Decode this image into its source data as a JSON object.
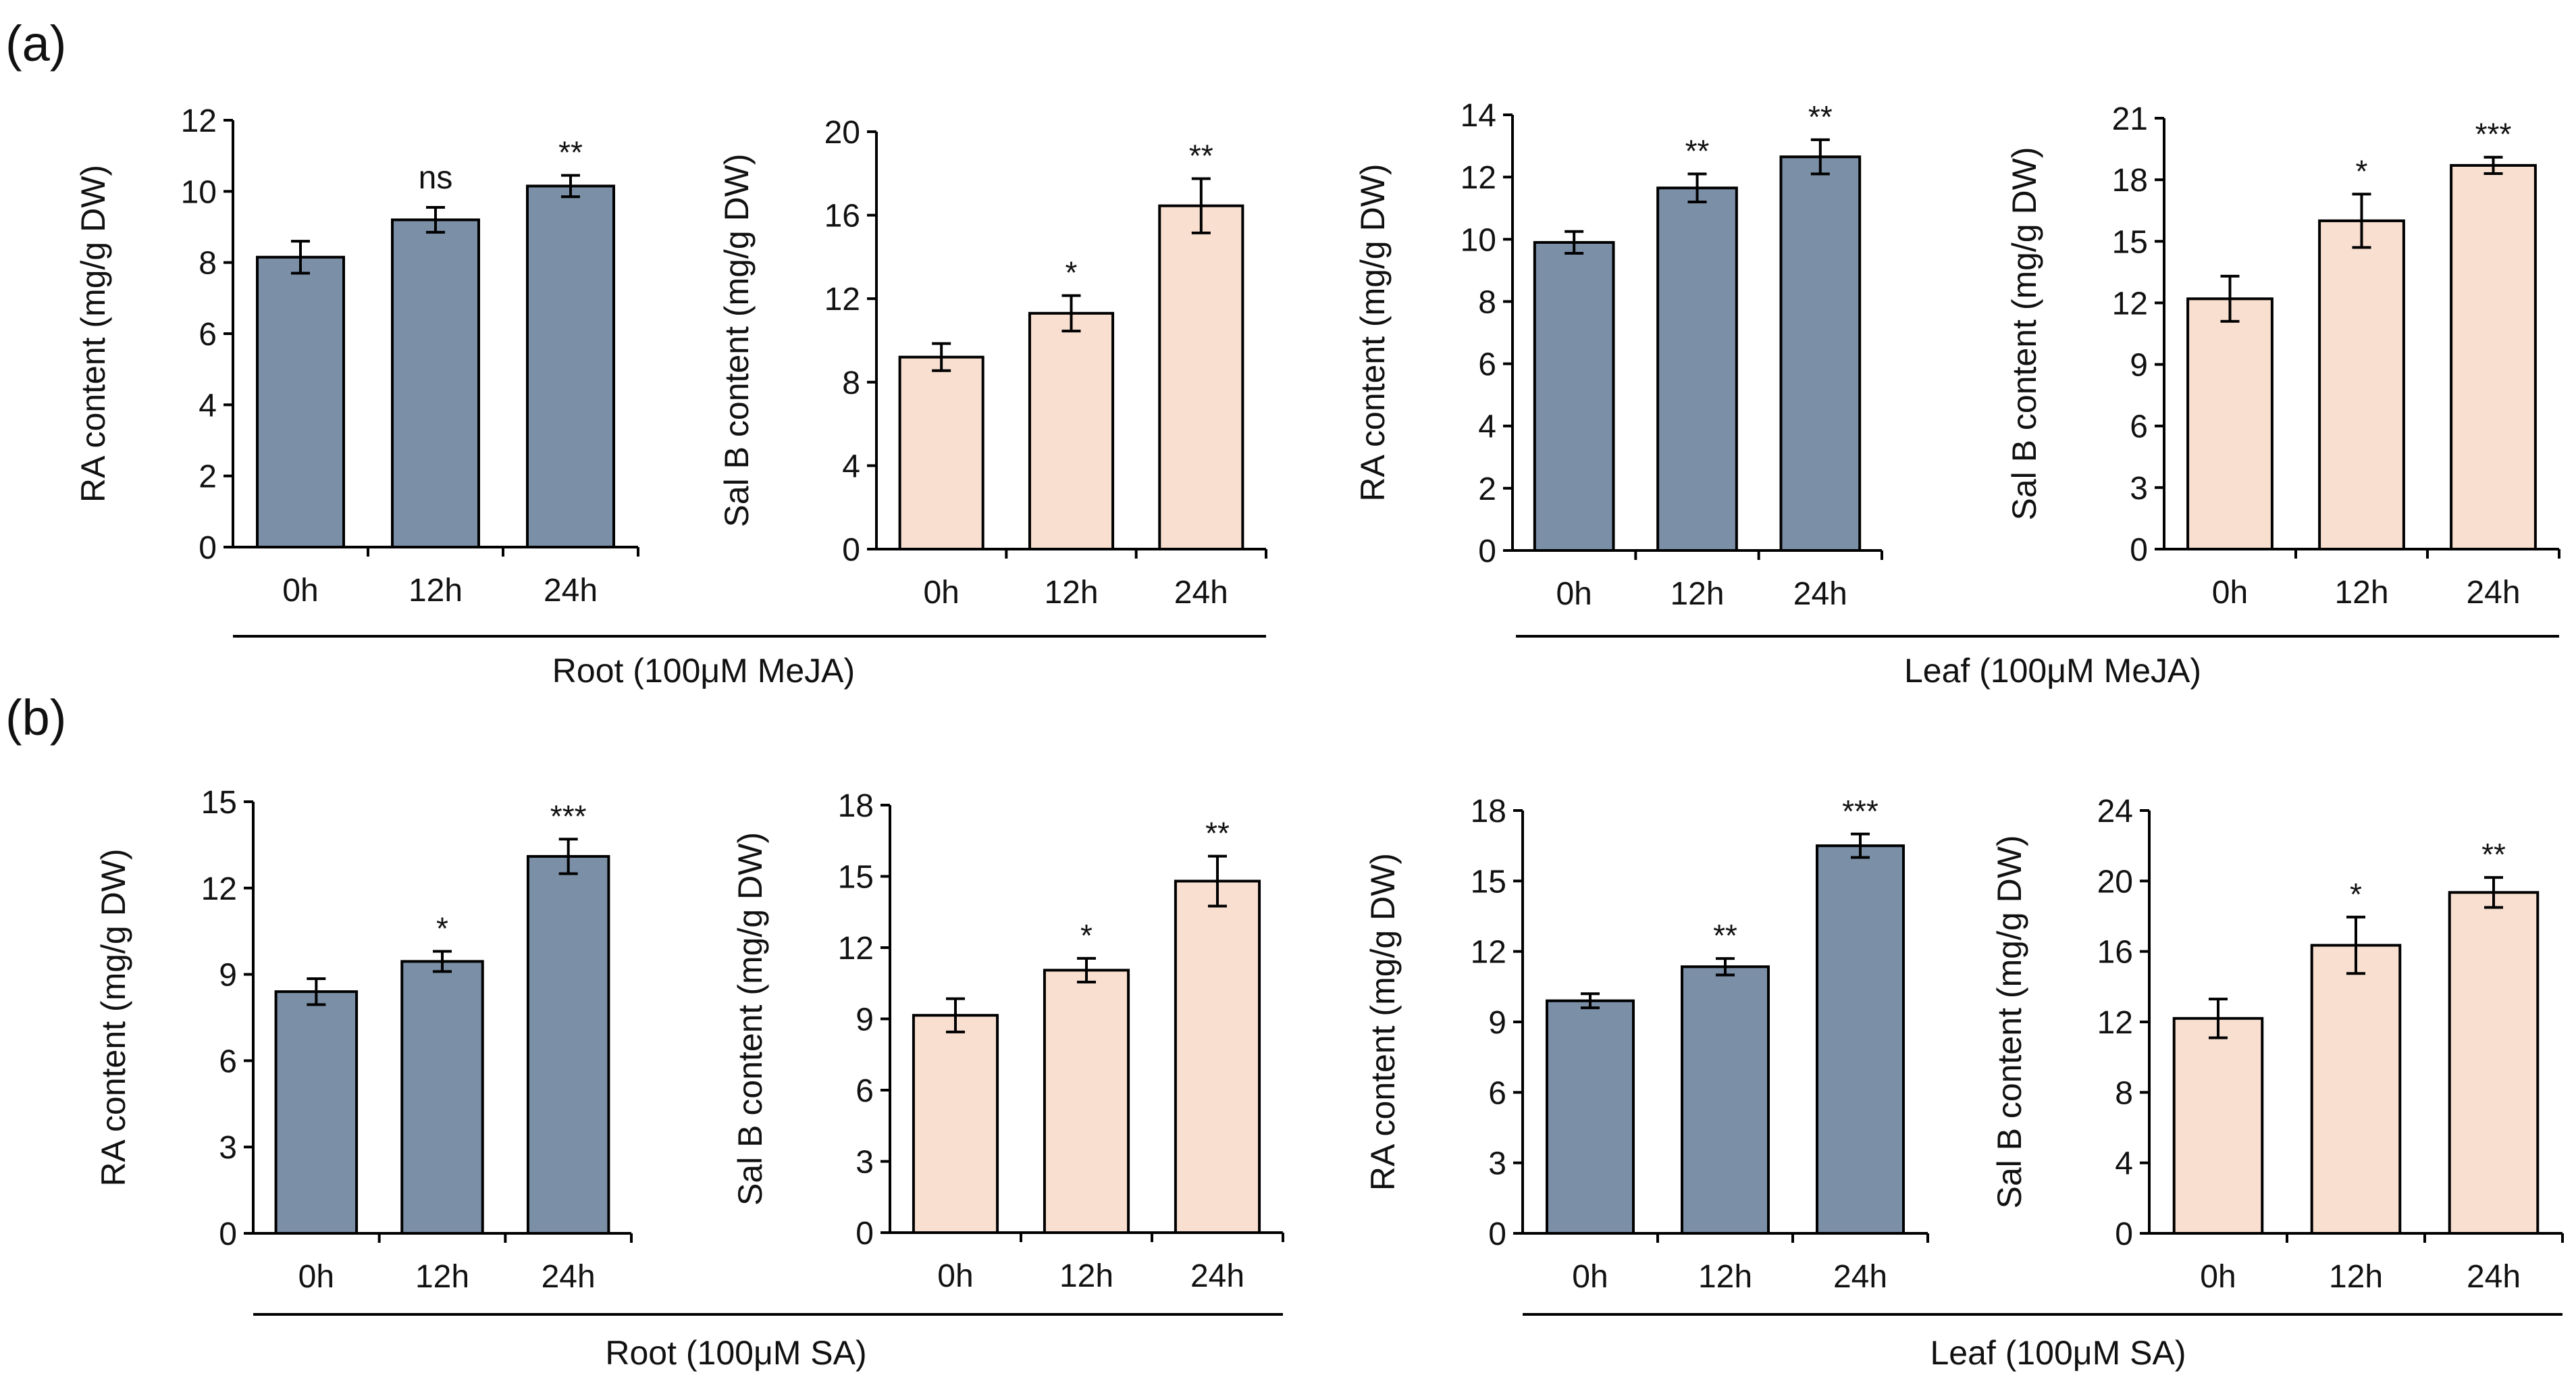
{
  "panel_labels": {
    "a": "(a)",
    "b": "(b)"
  },
  "group_labels": {
    "a_root": "Root (100μM MeJA)",
    "a_leaf": "Leaf (100μM MeJA)",
    "b_root": "Root (100μM SA)",
    "b_leaf": "Leaf (100μM SA)"
  },
  "colors": {
    "ra_bar": "#7b8fa7",
    "salb_bar": "#f8dfd0",
    "outline": "#000000"
  },
  "chart_data": [
    {
      "id": "a1",
      "type": "bar",
      "ylabel": "RA content (mg/g DW)",
      "categories": [
        "0h",
        "12h",
        "24h"
      ],
      "values": [
        8.15,
        9.2,
        10.15
      ],
      "errors": [
        0.45,
        0.35,
        0.3
      ],
      "significance": [
        "",
        "ns",
        "**"
      ],
      "ylim": [
        0,
        12
      ],
      "yticks": [
        "0",
        "2",
        "4",
        "6",
        "8",
        "10",
        "12"
      ]
    },
    {
      "id": "a2",
      "type": "bar",
      "ylabel": "Sal B content (mg/g DW)",
      "categories": [
        "0h",
        "12h",
        "24h"
      ],
      "values": [
        9.2,
        11.3,
        16.45
      ],
      "errors": [
        0.65,
        0.85,
        1.3
      ],
      "significance": [
        "",
        "*",
        "**"
      ],
      "ylim": [
        0,
        20
      ],
      "yticks": [
        "0",
        "4",
        "8",
        "12",
        "16",
        "20"
      ]
    },
    {
      "id": "a3",
      "type": "bar",
      "ylabel": "RA content (mg/g DW)",
      "categories": [
        "0h",
        "12h",
        "24h"
      ],
      "values": [
        9.9,
        11.65,
        12.65
      ],
      "errors": [
        0.35,
        0.45,
        0.55
      ],
      "significance": [
        "",
        "**",
        "**"
      ],
      "ylim": [
        0,
        14
      ],
      "yticks": [
        "0",
        "2",
        "4",
        "6",
        "8",
        "10",
        "12",
        "14"
      ]
    },
    {
      "id": "a4",
      "type": "bar",
      "ylabel": "Sal B content (mg/g DW)",
      "categories": [
        "0h",
        "12h",
        "24h"
      ],
      "values": [
        12.2,
        16.0,
        18.7
      ],
      "errors": [
        1.1,
        1.3,
        0.4
      ],
      "significance": [
        "",
        "*",
        "***"
      ],
      "ylim": [
        0,
        21
      ],
      "yticks": [
        "0",
        "3",
        "6",
        "9",
        "12",
        "15",
        "18",
        "21"
      ]
    },
    {
      "id": "b1",
      "type": "bar",
      "ylabel": "RA content (mg/g DW)",
      "categories": [
        "0h",
        "12h",
        "24h"
      ],
      "values": [
        8.4,
        9.45,
        13.1
      ],
      "errors": [
        0.45,
        0.35,
        0.6
      ],
      "significance": [
        "",
        "*",
        "***"
      ],
      "ylim": [
        0,
        15
      ],
      "yticks": [
        "0",
        "3",
        "6",
        "9",
        "12",
        "15"
      ]
    },
    {
      "id": "b2",
      "type": "bar",
      "ylabel": "Sal B content (mg/g DW)",
      "categories": [
        "0h",
        "12h",
        "24h"
      ],
      "values": [
        9.15,
        11.05,
        14.8
      ],
      "errors": [
        0.7,
        0.5,
        1.05
      ],
      "significance": [
        "",
        "*",
        "**"
      ],
      "ylim": [
        0,
        18
      ],
      "yticks": [
        "0",
        "3",
        "6",
        "9",
        "12",
        "15",
        "18"
      ]
    },
    {
      "id": "b3",
      "type": "bar",
      "ylabel": "RA content (mg/g DW)",
      "categories": [
        "0h",
        "12h",
        "24h"
      ],
      "values": [
        9.9,
        11.35,
        16.5
      ],
      "errors": [
        0.3,
        0.35,
        0.5
      ],
      "significance": [
        "",
        "**",
        "***"
      ],
      "ylim": [
        0,
        18
      ],
      "yticks": [
        "0",
        "3",
        "6",
        "9",
        "12",
        "15",
        "18"
      ]
    },
    {
      "id": "b4",
      "type": "bar",
      "ylabel": "Sal B content (mg/g DW)",
      "categories": [
        "0h",
        "12h",
        "24h"
      ],
      "values": [
        12.2,
        16.35,
        19.35
      ],
      "errors": [
        1.1,
        1.6,
        0.85
      ],
      "significance": [
        "",
        "*",
        "**"
      ],
      "ylim": [
        0,
        24
      ],
      "yticks": [
        "0",
        "4",
        "8",
        "12",
        "16",
        "20",
        "24"
      ]
    }
  ]
}
